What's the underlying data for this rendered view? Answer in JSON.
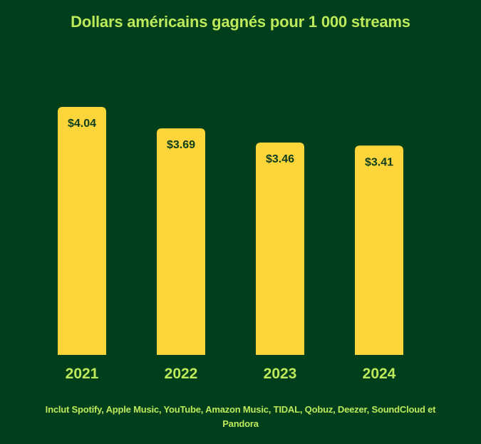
{
  "chart_data": {
    "type": "bar",
    "title": "Dollars américains gagnés pour 1 000 streams",
    "categories": [
      "2021",
      "2022",
      "2023",
      "2024"
    ],
    "values": [
      4.04,
      3.69,
      3.46,
      3.41
    ],
    "data_labels": [
      "$4.04",
      "$3.69",
      "$3.46",
      "$3.41"
    ],
    "xlabel": "",
    "ylabel": "",
    "ylim": [
      0,
      4.04
    ],
    "grid": false,
    "legend": "none",
    "footnote": "Inclut Spotify, Apple Music, YouTube, Amazon Music, TIDAL, Qobuz, Deezer, SoundCloud et Pandora"
  },
  "colors": {
    "background": "#013f1c",
    "bar": "#fcd53b",
    "title_text": "#bdea5a",
    "value_label": "#0d3d1c",
    "category_label": "#bdea5a",
    "footnote_text": "#bdea5a"
  }
}
